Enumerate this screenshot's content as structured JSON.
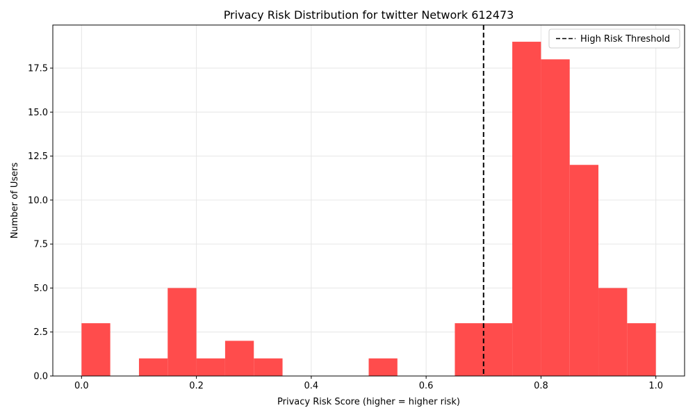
{
  "chart_data": {
    "type": "bar",
    "title": "Privacy Risk Distribution for twitter Network 612473",
    "xlabel": "Privacy Risk Score (higher = higher risk)",
    "ylabel": "Number of Users",
    "xlim": [
      -0.05,
      1.05
    ],
    "ylim": [
      0,
      19.95
    ],
    "bin_width": 0.05,
    "bins": [
      {
        "x": 0.0,
        "count": 3
      },
      {
        "x": 0.05,
        "count": 0
      },
      {
        "x": 0.1,
        "count": 1
      },
      {
        "x": 0.15,
        "count": 5
      },
      {
        "x": 0.2,
        "count": 1
      },
      {
        "x": 0.25,
        "count": 2
      },
      {
        "x": 0.3,
        "count": 1
      },
      {
        "x": 0.35,
        "count": 0
      },
      {
        "x": 0.4,
        "count": 0
      },
      {
        "x": 0.45,
        "count": 0
      },
      {
        "x": 0.5,
        "count": 1
      },
      {
        "x": 0.55,
        "count": 0
      },
      {
        "x": 0.6,
        "count": 0
      },
      {
        "x": 0.65,
        "count": 3
      },
      {
        "x": 0.7,
        "count": 3
      },
      {
        "x": 0.75,
        "count": 19
      },
      {
        "x": 0.8,
        "count": 18
      },
      {
        "x": 0.85,
        "count": 12
      },
      {
        "x": 0.9,
        "count": 5
      },
      {
        "x": 0.95,
        "count": 3
      }
    ],
    "bar_color": "#ff4c4c",
    "threshold": {
      "x": 0.7,
      "label": "High Risk Threshold",
      "color": "#000000",
      "style": "dashed"
    },
    "x_ticks": [
      0.0,
      0.2,
      0.4,
      0.6,
      0.8,
      1.0
    ],
    "x_tick_labels": [
      "0.0",
      "0.2",
      "0.4",
      "0.6",
      "0.8",
      "1.0"
    ],
    "y_ticks": [
      0.0,
      2.5,
      5.0,
      7.5,
      10.0,
      12.5,
      15.0,
      17.5
    ],
    "y_tick_labels": [
      "0.0",
      "2.5",
      "5.0",
      "7.5",
      "10.0",
      "12.5",
      "15.0",
      "17.5"
    ],
    "grid": true,
    "legend_position": "top-right"
  }
}
